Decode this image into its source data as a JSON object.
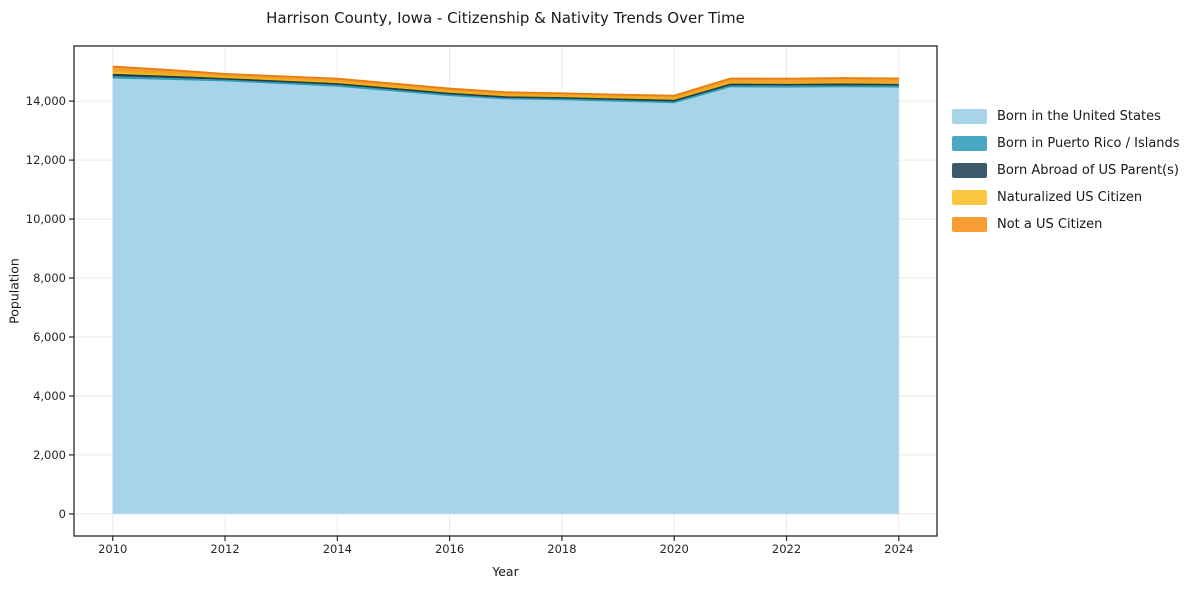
{
  "chart_data": {
    "type": "area",
    "stacked": true,
    "title": "Harrison County, Iowa - Citizenship & Nativity Trends Over Time",
    "xlabel": "Year",
    "ylabel": "Population",
    "x": [
      2010,
      2011,
      2012,
      2013,
      2014,
      2015,
      2016,
      2017,
      2018,
      2019,
      2020,
      2021,
      2022,
      2023,
      2024
    ],
    "series": [
      {
        "name": "Born in the United States",
        "color": "#9fcfe8",
        "line": "#9fcfe8",
        "values": [
          14800,
          14750,
          14700,
          14610,
          14520,
          14360,
          14200,
          14090,
          14060,
          14010,
          13960,
          14500,
          14490,
          14500,
          14490
        ]
      },
      {
        "name": "Born in Puerto Rico / Islands",
        "color": "#35a0bd",
        "line": "#2f9db8",
        "values": [
          0,
          0,
          0,
          0,
          0,
          0,
          0,
          0,
          0,
          0,
          0,
          0,
          0,
          0,
          0
        ]
      },
      {
        "name": "Born Abroad of US Parent(s)",
        "color": "#27485c",
        "line": "#1f3a4b",
        "values": [
          100,
          80,
          60,
          62,
          65,
          62,
          58,
          52,
          55,
          58,
          60,
          68,
          70,
          70,
          70
        ]
      },
      {
        "name": "Naturalized US Citizen",
        "color": "#fcc02c",
        "line": "#edb30f",
        "values": [
          105,
          80,
          52,
          55,
          58,
          58,
          56,
          52,
          50,
          52,
          58,
          60,
          58,
          60,
          60
        ]
      },
      {
        "name": "Not a US Citizen",
        "color": "#f6921e",
        "line": "#e67f0d",
        "values": [
          170,
          148,
          112,
          115,
          118,
          116,
          112,
          108,
          102,
          100,
          108,
          140,
          145,
          152,
          150
        ]
      }
    ],
    "xticks": [
      2010,
      2012,
      2014,
      2016,
      2018,
      2020,
      2022,
      2024
    ],
    "xtick_labels": [
      "2010",
      "2012",
      "2014",
      "2016",
      "2018",
      "2020",
      "2022",
      "2024"
    ],
    "yticks": [
      0,
      2000,
      4000,
      6000,
      8000,
      10000,
      12000,
      14000
    ],
    "ytick_labels": [
      "0",
      "2,000",
      "4,000",
      "6,000",
      "8,000",
      "10,000",
      "12,000",
      "14,000"
    ],
    "xlim": [
      2009.31,
      2024.68
    ],
    "ylim": [
      -750,
      15870
    ],
    "grid": true,
    "grid_color": "#eaeaea",
    "axis_color": "#262626",
    "fill_opacity": 0.9,
    "legend_position": "right"
  }
}
